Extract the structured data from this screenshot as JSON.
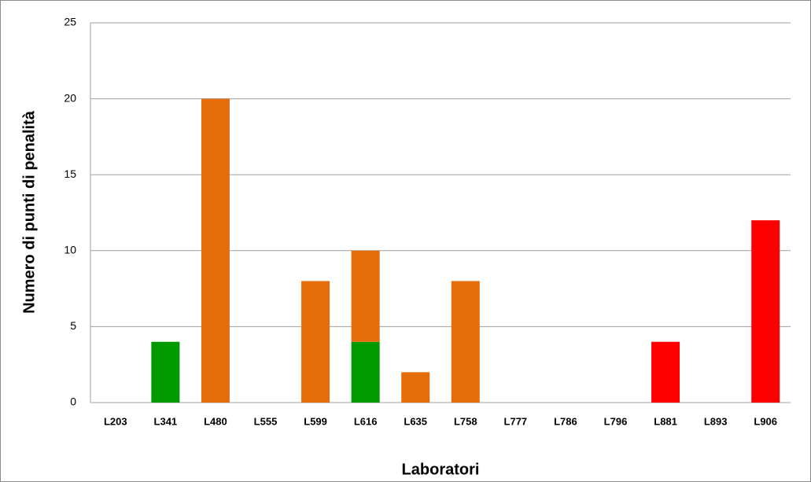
{
  "chart_data": {
    "type": "stacked_bar",
    "x_label": "Laboratori",
    "y_label": "Numero di punti di penalità",
    "categories": [
      "L203",
      "L341",
      "L480",
      "L555",
      "L599",
      "L616",
      "L635",
      "L758",
      "L777",
      "L786",
      "L796",
      "L881",
      "L893",
      "L906"
    ],
    "series": [
      {
        "color": "#009900",
        "values": [
          0,
          4,
          0,
          0,
          0,
          4,
          0,
          0,
          0,
          0,
          0,
          0,
          0,
          0
        ]
      },
      {
        "color": "#e46c0a",
        "values": [
          0,
          0,
          20,
          0,
          8,
          6,
          2,
          8,
          0,
          0,
          0,
          0,
          0,
          0
        ]
      },
      {
        "color": "#ff0000",
        "values": [
          0,
          0,
          0,
          0,
          0,
          0,
          0,
          0,
          0,
          0,
          0,
          4,
          0,
          12
        ]
      }
    ],
    "ylim": [
      0,
      25
    ],
    "yticks": [
      0,
      5,
      10,
      15,
      20,
      25
    ],
    "grid": true
  }
}
